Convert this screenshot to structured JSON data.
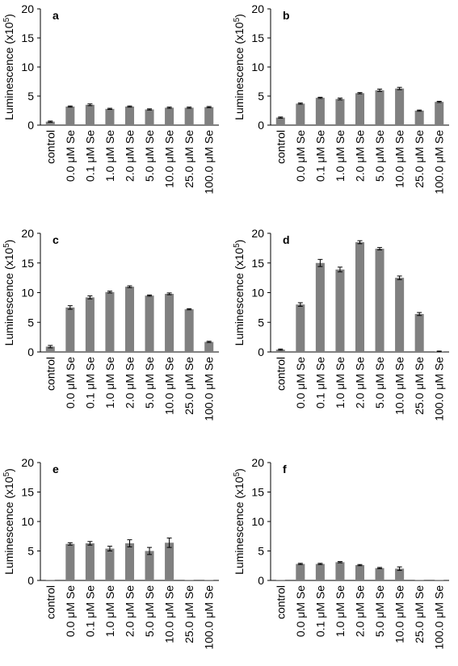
{
  "chart_data": [
    {
      "type": "bar",
      "panel_label": "a",
      "ylabel": "Luminescence (x10",
      "ylabel_sup": "5",
      "ylabel_close": ")",
      "ylim": [
        0,
        20
      ],
      "yticks": [
        "0",
        "5",
        "10",
        "15",
        "20"
      ],
      "categories": [
        "control",
        "0.0 μM Se",
        "0.1 μM Se",
        "1.0 μM Se",
        "2.0 μM Se",
        "5.0 μM Se",
        "10.0 μM Se",
        "25.0 μM Se",
        "100.0 μM Se"
      ],
      "values": [
        0.6,
        3.2,
        3.5,
        2.8,
        3.2,
        2.7,
        3.0,
        3.0,
        3.1
      ],
      "errors": [
        0.1,
        0.1,
        0.15,
        0.1,
        0.1,
        0.1,
        0.1,
        0.1,
        0.1
      ],
      "bar_color": "#808080",
      "grid": false
    },
    {
      "type": "bar",
      "panel_label": "b",
      "ylabel": "Luminescence (x10",
      "ylabel_sup": "5",
      "ylabel_close": ")",
      "ylim": [
        0,
        20
      ],
      "yticks": [
        "0",
        "5",
        "10",
        "15",
        "20"
      ],
      "categories": [
        "control",
        "0.0 μM Se",
        "0.1 μM Se",
        "1.0 μM Se",
        "2.0 μM Se",
        "5.0 μM Se",
        "10.0 μM Se",
        "25.0 μM Se",
        "100.0 μM Se"
      ],
      "values": [
        1.3,
        3.7,
        4.7,
        4.5,
        5.5,
        6.0,
        6.3,
        2.5,
        4.0
      ],
      "errors": [
        0.1,
        0.1,
        0.1,
        0.15,
        0.1,
        0.2,
        0.2,
        0.1,
        0.1
      ],
      "bar_color": "#808080",
      "grid": false
    },
    {
      "type": "bar",
      "panel_label": "c",
      "ylabel": "Luminescence (x10",
      "ylabel_sup": "5",
      "ylabel_close": ")",
      "ylim": [
        0,
        20
      ],
      "yticks": [
        "0",
        "5",
        "10",
        "15",
        "20"
      ],
      "categories": [
        "control",
        "0.0 μM Se",
        "0.1 μM Se",
        "1.0 μM Se",
        "2.0 μM Se",
        "5.0 μM Se",
        "10.0 μM Se",
        "25.0 μM Se",
        "100.0 μM Se"
      ],
      "values": [
        0.9,
        7.5,
        9.2,
        10.1,
        11.0,
        9.5,
        9.8,
        7.2,
        1.7
      ],
      "errors": [
        0.2,
        0.3,
        0.25,
        0.15,
        0.15,
        0.1,
        0.15,
        0.1,
        0.1
      ],
      "bar_color": "#808080",
      "grid": false
    },
    {
      "type": "bar",
      "panel_label": "d",
      "ylabel": "Luminescence (x10",
      "ylabel_sup": "5",
      "ylabel_close": ")",
      "ylim": [
        0,
        20
      ],
      "yticks": [
        "0",
        "5",
        "10",
        "15",
        "20"
      ],
      "categories": [
        "control",
        "0.0 μM Se",
        "0.1 μM Se",
        "1.0 μM Se",
        "2.0 μM Se",
        "5.0 μM Se",
        "10.0 μM Se",
        "25.0 μM Se",
        "100.0 μM Se"
      ],
      "values": [
        0.4,
        8.0,
        15.0,
        13.9,
        18.5,
        17.4,
        12.5,
        6.4,
        0.1
      ],
      "errors": [
        0.1,
        0.3,
        0.6,
        0.4,
        0.25,
        0.2,
        0.3,
        0.25,
        0.05
      ],
      "bar_color": "#808080",
      "grid": false
    },
    {
      "type": "bar",
      "panel_label": "e",
      "ylabel": "Luminescence (x10",
      "ylabel_sup": "5",
      "ylabel_close": ")",
      "ylim": [
        0,
        20
      ],
      "yticks": [
        "0",
        "5",
        "10",
        "15",
        "20"
      ],
      "categories": [
        "control",
        "0.0 μM Se",
        "0.1 μM Se",
        "1.0 μM Se",
        "2.0 μM Se",
        "5.0 μM Se",
        "10.0 μM Se",
        "25.0 μM Se",
        "100.0 μM Se"
      ],
      "values": [
        0.05,
        6.2,
        6.3,
        5.4,
        6.3,
        5.0,
        6.4,
        0.05,
        0.05
      ],
      "errors": [
        0.0,
        0.2,
        0.3,
        0.4,
        0.6,
        0.6,
        0.8,
        0.0,
        0.0
      ],
      "bar_color": "#808080",
      "grid": false
    },
    {
      "type": "bar",
      "panel_label": "f",
      "ylabel": "Luminescence (x10",
      "ylabel_sup": "5",
      "ylabel_close": ")",
      "ylim": [
        0,
        20
      ],
      "yticks": [
        "0",
        "5",
        "10",
        "15",
        "20"
      ],
      "categories": [
        "control",
        "0.0 μM Se",
        "0.1 μM Se",
        "1.0 μM Se",
        "2.0 μM Se",
        "5.0 μM Se",
        "10.0 μM Se",
        "25.0 μM Se",
        "100.0 μM Se"
      ],
      "values": [
        0.05,
        2.8,
        2.8,
        3.1,
        2.6,
        2.1,
        2.0,
        0.05,
        0.05
      ],
      "errors": [
        0.0,
        0.1,
        0.1,
        0.1,
        0.1,
        0.1,
        0.3,
        0.0,
        0.0
      ],
      "bar_color": "#808080",
      "grid": false
    }
  ]
}
